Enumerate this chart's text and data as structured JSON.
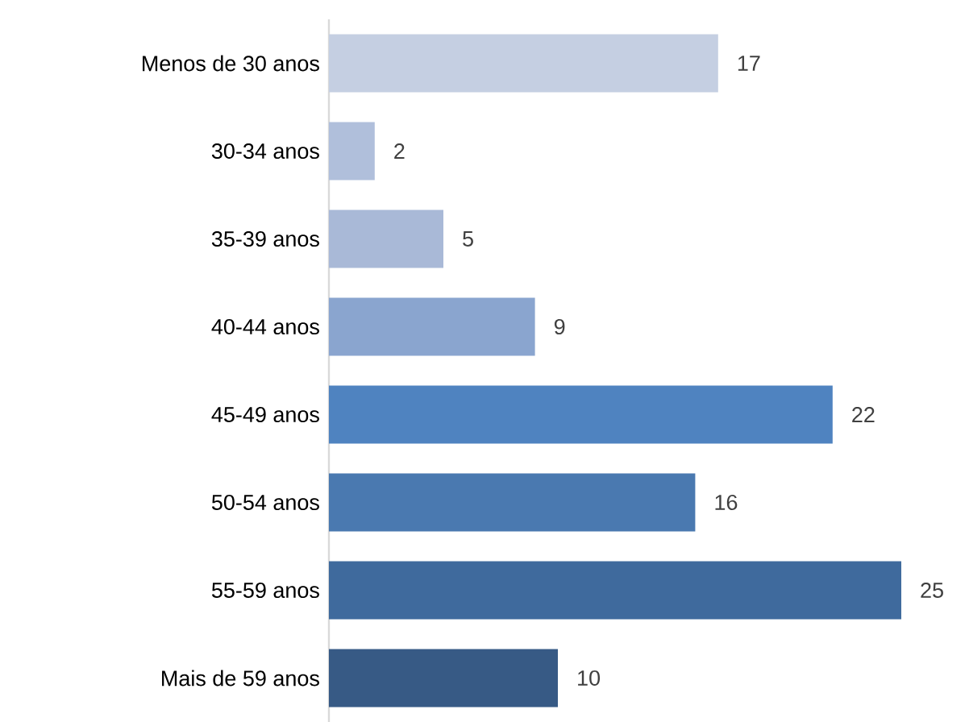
{
  "chart_data": {
    "type": "bar",
    "orientation": "horizontal",
    "categories": [
      "Menos de 30 anos",
      "30-34 anos",
      "35-39 anos",
      "40-44 anos",
      "45-49 anos",
      "50-54 anos",
      "55-59 anos",
      "Mais de 59 anos"
    ],
    "values": [
      17,
      2,
      5,
      9,
      22,
      16,
      25,
      10
    ],
    "colors": [
      "#c5cfe2",
      "#b0bfdb",
      "#a9b9d7",
      "#8aa5cf",
      "#4f83c0",
      "#4a79b0",
      "#3f6a9d",
      "#375a85"
    ],
    "data_labels": true
  }
}
